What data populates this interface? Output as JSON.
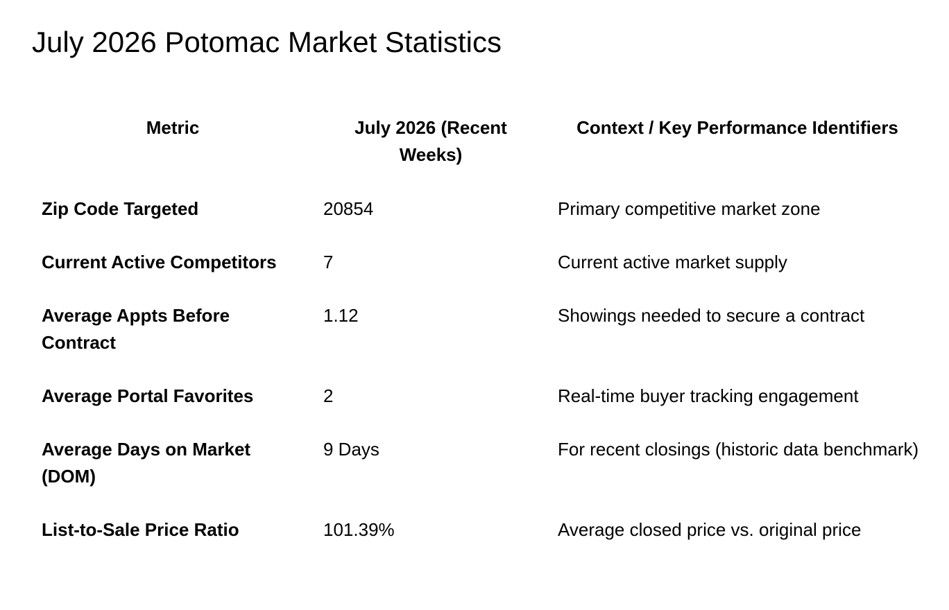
{
  "document": {
    "title": "July 2026 Potomac Market Statistics"
  },
  "table": {
    "headers": {
      "metric": "Metric",
      "value": "July 2026 (Recent Weeks)",
      "context": "Context / Key Performance Identifiers"
    },
    "rows": [
      {
        "metric": "Zip Code Targeted",
        "value": "20854",
        "context": "Primary competitive market zone"
      },
      {
        "metric": "Current Active Competitors",
        "value": "7",
        "context": "Current active market supply"
      },
      {
        "metric": "Average Appts Before Contract",
        "value": "1.12",
        "context": "Showings needed to secure a contract"
      },
      {
        "metric": "Average Portal Favorites",
        "value": "2",
        "context": "Real-time buyer tracking engagement"
      },
      {
        "metric": "Average Days on Market (DOM)",
        "value": "9 Days",
        "context": "For recent closings (historic data benchmark)"
      },
      {
        "metric": "List-to-Sale Price Ratio",
        "value": "101.39%",
        "context": "Average closed price vs. original price"
      }
    ]
  }
}
